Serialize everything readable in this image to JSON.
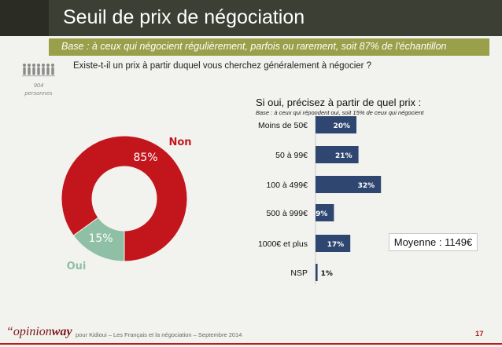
{
  "header": {
    "title": "Seuil de prix de négociation",
    "base": "Base : à ceux qui négocient régulièrement, parfois ou rarement, soit 87% de l'échantillon"
  },
  "sample": {
    "count": "904",
    "unit": "personnes"
  },
  "question": "Existe-t-il un prix à partir duquel vous cherchez généralement à négocier ?",
  "colors": {
    "non": "#c3161c",
    "oui": "#8fbfa5",
    "bar": "#2e4670",
    "title_bg": "#3c3f33",
    "subtitle_bg": "#9aa04a"
  },
  "chart_data": [
    {
      "type": "pie",
      "categories": [
        "Non",
        "Oui"
      ],
      "values": [
        85,
        15
      ],
      "value_labels": [
        "85%",
        "15%"
      ]
    },
    {
      "type": "bar",
      "title": "Si oui, précisez à partir de quel prix :",
      "subtitle": "Base : à ceux qui répondent oui, soit 15% de ceux qui négocient",
      "categories": [
        "Moins de 50€",
        "50 à 99€",
        "100 à 499€",
        "500 à 999€",
        "1000€ et plus",
        "NSP"
      ],
      "values": [
        20,
        21,
        32,
        9,
        17,
        1
      ],
      "value_labels": [
        "20%",
        "21%",
        "32%",
        "9%",
        "17%",
        "1%"
      ]
    }
  ],
  "mean": "Moyenne : 1149€",
  "footer": {
    "logo_a": "“opinion",
    "logo_b": "way",
    "text": "pour Kidioui – Les Français et la négociation – Septembre 2014",
    "page": "17"
  }
}
